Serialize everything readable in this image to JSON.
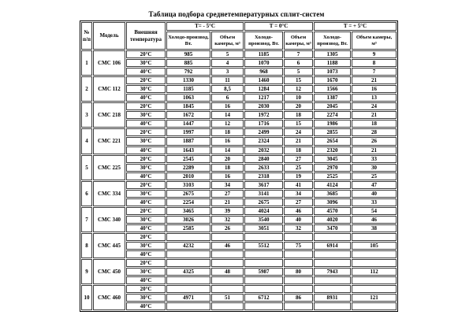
{
  "title": "Таблица подбора среднетемпературных сплит-систем",
  "table": {
    "header": {
      "num": "№ п/п",
      "model": "Модель",
      "temp": "Внешняя температура",
      "groups": [
        {
          "title": "Т= - 5°С",
          "cool": "Холодо-производ, Вт.",
          "vol": "Объем камеры, м³"
        },
        {
          "title": "Т = 0°С",
          "cool": "Холодо-производ, Вт.",
          "vol": "Объем камеры, м³"
        },
        {
          "title": "Т = + 5°С",
          "cool": "Холодо-производ, Вт.",
          "vol": "Объем камеры, м³"
        }
      ]
    },
    "rows": [
      {
        "num": "1",
        "model": "СМС 106",
        "temps": [
          {
            "t": "20°С",
            "values": [
              "985",
              "5",
              "1185",
              "7",
              "1305",
              "9"
            ]
          },
          {
            "t": "30°С",
            "values": [
              "885",
              "4",
              "1070",
              "6",
              "1188",
              "8"
            ]
          },
          {
            "t": "40°С",
            "values": [
              "792",
              "3",
              "968",
              "5",
              "1073",
              "7"
            ]
          }
        ]
      },
      {
        "num": "2",
        "model": "СМС 112",
        "temps": [
          {
            "t": "20°С",
            "values": [
              "1330",
              "11",
              "1460",
              "15",
              "1670",
              "21"
            ]
          },
          {
            "t": "30°С",
            "values": [
              "1185",
              "8,5",
              "1284",
              "12",
              "1566",
              "16"
            ]
          },
          {
            "t": "40°С",
            "values": [
              "1063",
              "6",
              "1217",
              "10",
              "1387",
              "13"
            ]
          }
        ]
      },
      {
        "num": "3",
        "model": "СМС 218",
        "temps": [
          {
            "t": "20°С",
            "values": [
              "1845",
              "16",
              "2030",
              "20",
              "2045",
              "24"
            ]
          },
          {
            "t": "30°С",
            "values": [
              "1672",
              "14",
              "1972",
              "18",
              "2274",
              "21"
            ]
          },
          {
            "t": "40°С",
            "values": [
              "1447",
              "12",
              "1716",
              "15",
              "1986",
              "18"
            ]
          }
        ]
      },
      {
        "num": "4",
        "model": "СМС 221",
        "temps": [
          {
            "t": "20°С",
            "values": [
              "1997",
              "18",
              "2499",
              "24",
              "2855",
              "28"
            ]
          },
          {
            "t": "30°С",
            "values": [
              "1887",
              "16",
              "2324",
              "21",
              "2654",
              "26"
            ]
          },
          {
            "t": "40°С",
            "values": [
              "1643",
              "14",
              "2032",
              "18",
              "2320",
              "21"
            ]
          }
        ]
      },
      {
        "num": "5",
        "model": "СМС 225",
        "temps": [
          {
            "t": "20°С",
            "values": [
              "2545",
              "20",
              "2840",
              "27",
              "3045",
              "33"
            ]
          },
          {
            "t": "30°С",
            "values": [
              "2289",
              "18",
              "2633",
              "25",
              "2970",
              "30"
            ]
          },
          {
            "t": "40°С",
            "values": [
              "2010",
              "16",
              "2318",
              "19",
              "2525",
              "25"
            ]
          }
        ]
      },
      {
        "num": "6",
        "model": "СМС 334",
        "temps": [
          {
            "t": "20°С",
            "values": [
              "3103",
              "34",
              "3617",
              "41",
              "4124",
              "47"
            ]
          },
          {
            "t": "30°С",
            "values": [
              "2675",
              "27",
              "3141",
              "34",
              "3685",
              "40"
            ]
          },
          {
            "t": "40°С",
            "values": [
              "2254",
              "21",
              "2675",
              "27",
              "3096",
              "33"
            ]
          }
        ]
      },
      {
        "num": "7",
        "model": "СМС 340",
        "temps": [
          {
            "t": "20°С",
            "values": [
              "3465",
              "39",
              "4024",
              "46",
              "4570",
              "54"
            ]
          },
          {
            "t": "30°С",
            "values": [
              "3026",
              "32",
              "3540",
              "40",
              "4020",
              "46"
            ]
          },
          {
            "t": "40°С",
            "values": [
              "2585",
              "26",
              "3051",
              "32",
              "3470",
              "38"
            ]
          }
        ]
      },
      {
        "num": "8",
        "model": "СМС 445",
        "temps": [
          {
            "t": "20°С",
            "values": [
              "",
              "",
              "",
              "",
              "",
              ""
            ]
          },
          {
            "t": "30°С",
            "values": [
              "4232",
              "46",
              "5512",
              "75",
              "6914",
              "105"
            ]
          },
          {
            "t": "40°С",
            "values": [
              "",
              "",
              "",
              "",
              "",
              ""
            ]
          }
        ]
      },
      {
        "num": "9",
        "model": "СМС 450",
        "temps": [
          {
            "t": "20°С",
            "values": [
              "",
              "",
              "",
              "",
              "",
              ""
            ]
          },
          {
            "t": "30°С",
            "values": [
              "4325",
              "48",
              "5987",
              "80",
              "7943",
              "112"
            ]
          },
          {
            "t": "40°С",
            "values": [
              "",
              "",
              "",
              "",
              "",
              ""
            ]
          }
        ]
      },
      {
        "num": "10",
        "model": "СМС 460",
        "temps": [
          {
            "t": "20°С",
            "values": [
              "",
              "",
              "",
              "",
              "",
              ""
            ]
          },
          {
            "t": "30°С",
            "values": [
              "4971",
              "51",
              "6712",
              "86",
              "8931",
              "121"
            ]
          },
          {
            "t": "40°С",
            "values": [
              "",
              "",
              "",
              "",
              "",
              ""
            ]
          }
        ]
      }
    ]
  }
}
